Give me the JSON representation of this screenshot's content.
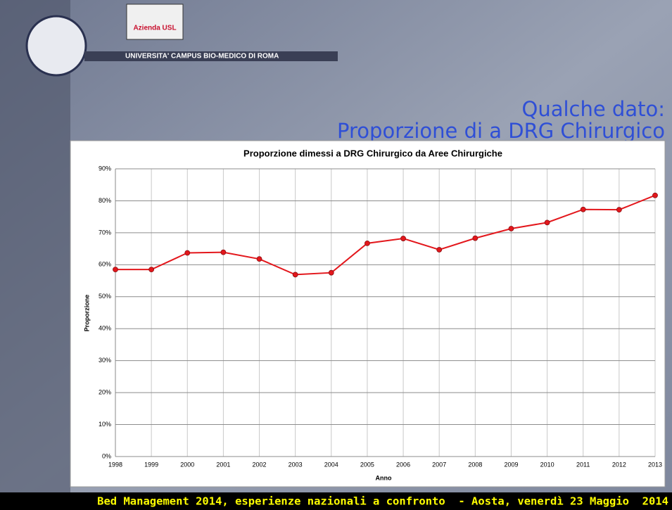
{
  "header": {
    "university": "UNIVERSITA' CAMPUS BIO-MEDICO DI ROMA",
    "partner": "Azienda USL"
  },
  "slide_title": [
    "Qualche dato:",
    "Proporzione di a DRG Chirurgico"
  ],
  "chart_data": {
    "type": "line",
    "title": "Proporzione dimessi a DRG Chirurgico da Aree Chirurgiche",
    "x_label": "Anno",
    "y_label": "Proporzione",
    "categories": [
      "1998",
      "1999",
      "2000",
      "2001",
      "2002",
      "2003",
      "2004",
      "2005",
      "2006",
      "2007",
      "2008",
      "2009",
      "2010",
      "2011",
      "2012",
      "2013"
    ],
    "series": [
      {
        "name": "Proporzione",
        "color": "#e3171c",
        "values": [
          58.5,
          58.5,
          63.7,
          63.9,
          61.8,
          56.9,
          57.5,
          66.7,
          68.2,
          64.7,
          68.3,
          71.3,
          73.2,
          77.3,
          77.2,
          81.7
        ]
      }
    ],
    "ylim": [
      0,
      90
    ],
    "yticks": [
      {
        "value": 0,
        "label": "0%"
      },
      {
        "value": 10,
        "label": "10%"
      },
      {
        "value": 20,
        "label": "20%"
      },
      {
        "value": 30,
        "label": "30%"
      },
      {
        "value": 40,
        "label": "40%"
      },
      {
        "value": 50,
        "label": "50%"
      },
      {
        "value": 60,
        "label": "60%"
      },
      {
        "value": 70,
        "label": "70%"
      },
      {
        "value": 80,
        "label": "80%"
      },
      {
        "value": 90,
        "label": "90%"
      }
    ],
    "grid": true
  },
  "footer": "Bed Management 2014, esperienze nazionali a confronto  - Aosta, venerdì 23 Maggio  2014"
}
